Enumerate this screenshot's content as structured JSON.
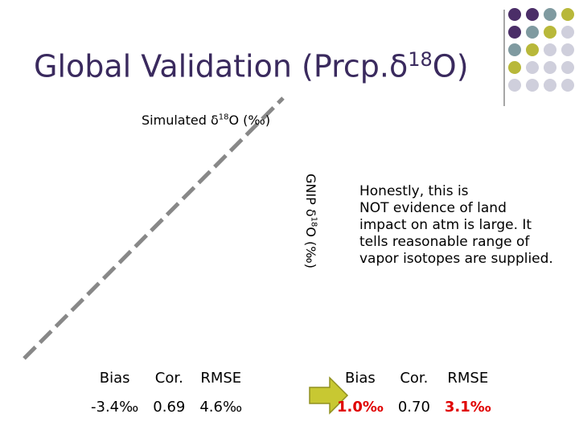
{
  "title": {
    "main": "Global Validation (Prcp.δ",
    "sup": "18",
    "end": "O)"
  },
  "x_label": {
    "main": "Simulated δ",
    "sup": "18",
    "end": "O (‰)"
  },
  "y_label": {
    "main": "GNIP δ",
    "sup": "18",
    "end": "O (‰)"
  },
  "note": [
    "Honestly, this is",
    "NOT evidence of land",
    "impact on atm is large. It",
    "tells reasonable range of",
    "vapor isotopes are supplied."
  ],
  "table_left": {
    "header": [
      "Bias",
      "Cor.",
      "RMSE"
    ],
    "row": [
      "-3.4‰",
      "0.69",
      "4.6‰"
    ]
  },
  "table_right": {
    "header": [
      "Bias",
      "Cor.",
      "RMSE"
    ],
    "row": [
      "1.0‰",
      "0.70",
      "3.1‰"
    ]
  }
}
